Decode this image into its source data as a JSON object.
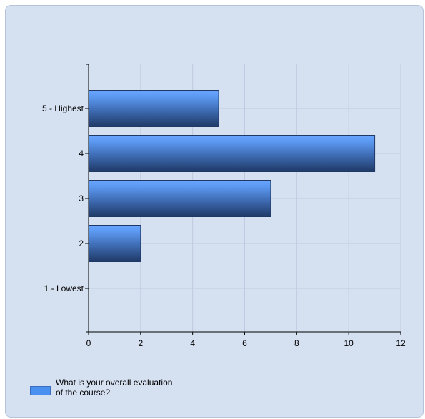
{
  "chart_data": {
    "type": "bar",
    "orientation": "horizontal",
    "title": "",
    "xlabel": "",
    "ylabel": "",
    "categories": [
      "5 - Highest",
      "4",
      "3",
      "2",
      "1 - Lowest"
    ],
    "series": [
      {
        "name": "What is your overall evaluation of the course?",
        "values": [
          5,
          11,
          7,
          2,
          0
        ],
        "color": "#4a90f0"
      }
    ],
    "xlim": [
      0,
      12
    ],
    "xticks": [
      0,
      2,
      4,
      6,
      8,
      10,
      12
    ],
    "grid": true,
    "legend_position": "bottom-left"
  },
  "legend": {
    "line1": "What is your overall evaluation",
    "line2": "of the course?"
  }
}
